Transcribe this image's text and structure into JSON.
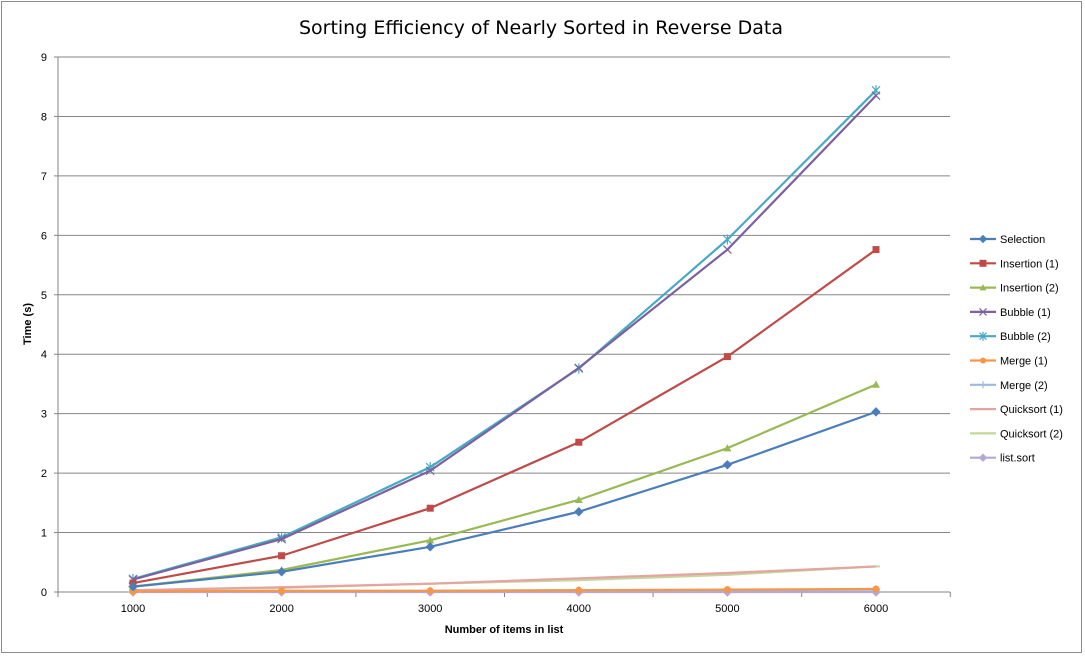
{
  "chart_data": {
    "type": "line",
    "title": "Sorting Efficiency of Nearly Sorted in Reverse Data",
    "xlabel": "Number of items in list",
    "ylabel": "Time (s)",
    "x": [
      1000,
      2000,
      3000,
      4000,
      5000,
      6000
    ],
    "x_tick_labels": [
      "1000",
      "2000",
      "3000",
      "4000",
      "5000",
      "6000"
    ],
    "ylim": [
      0,
      9
    ],
    "y_ticks": [
      0,
      1,
      2,
      3,
      4,
      5,
      6,
      7,
      8,
      9
    ],
    "grid": "horizontal major gridlines",
    "legend_position": "right",
    "series": [
      {
        "name": "Selection",
        "color": "#4a7ebb",
        "marker": "diamond",
        "values": [
          0.09,
          0.34,
          0.76,
          1.35,
          2.14,
          3.03
        ]
      },
      {
        "name": "Insertion (1)",
        "color": "#be4b48",
        "marker": "square",
        "values": [
          0.15,
          0.61,
          1.41,
          2.52,
          3.96,
          5.76
        ]
      },
      {
        "name": "Insertion (2)",
        "color": "#98b954",
        "marker": "triangle",
        "values": [
          0.09,
          0.37,
          0.87,
          1.55,
          2.42,
          3.49
        ]
      },
      {
        "name": "Bubble (1)",
        "color": "#7d60a0",
        "marker": "x",
        "values": [
          0.21,
          0.89,
          2.04,
          3.77,
          5.76,
          8.35
        ]
      },
      {
        "name": "Bubble (2)",
        "color": "#46aac5",
        "marker": "star",
        "values": [
          0.22,
          0.92,
          2.1,
          3.76,
          5.93,
          8.44
        ]
      },
      {
        "name": "Merge (1)",
        "color": "#f79646",
        "marker": "circle",
        "values": [
          0.01,
          0.02,
          0.02,
          0.03,
          0.04,
          0.05
        ]
      },
      {
        "name": "Merge (2)",
        "color": "#9bbae0",
        "marker": "plus",
        "values": [
          0.01,
          0.02,
          0.02,
          0.03,
          0.03,
          0.04
        ]
      },
      {
        "name": "Quicksort (1)",
        "color": "#e5a3a1",
        "marker": "none",
        "values": [
          0.03,
          0.08,
          0.14,
          0.23,
          0.32,
          0.43
        ]
      },
      {
        "name": "Quicksort (2)",
        "color": "#c4d79b",
        "marker": "dash",
        "values": [
          0.03,
          0.07,
          0.14,
          0.2,
          0.29,
          0.43
        ]
      },
      {
        "name": "list.sort",
        "color": "#b4a7d6",
        "marker": "diamond",
        "values": [
          0.0,
          0.0,
          0.0,
          0.0,
          0.0,
          0.0
        ]
      }
    ]
  }
}
